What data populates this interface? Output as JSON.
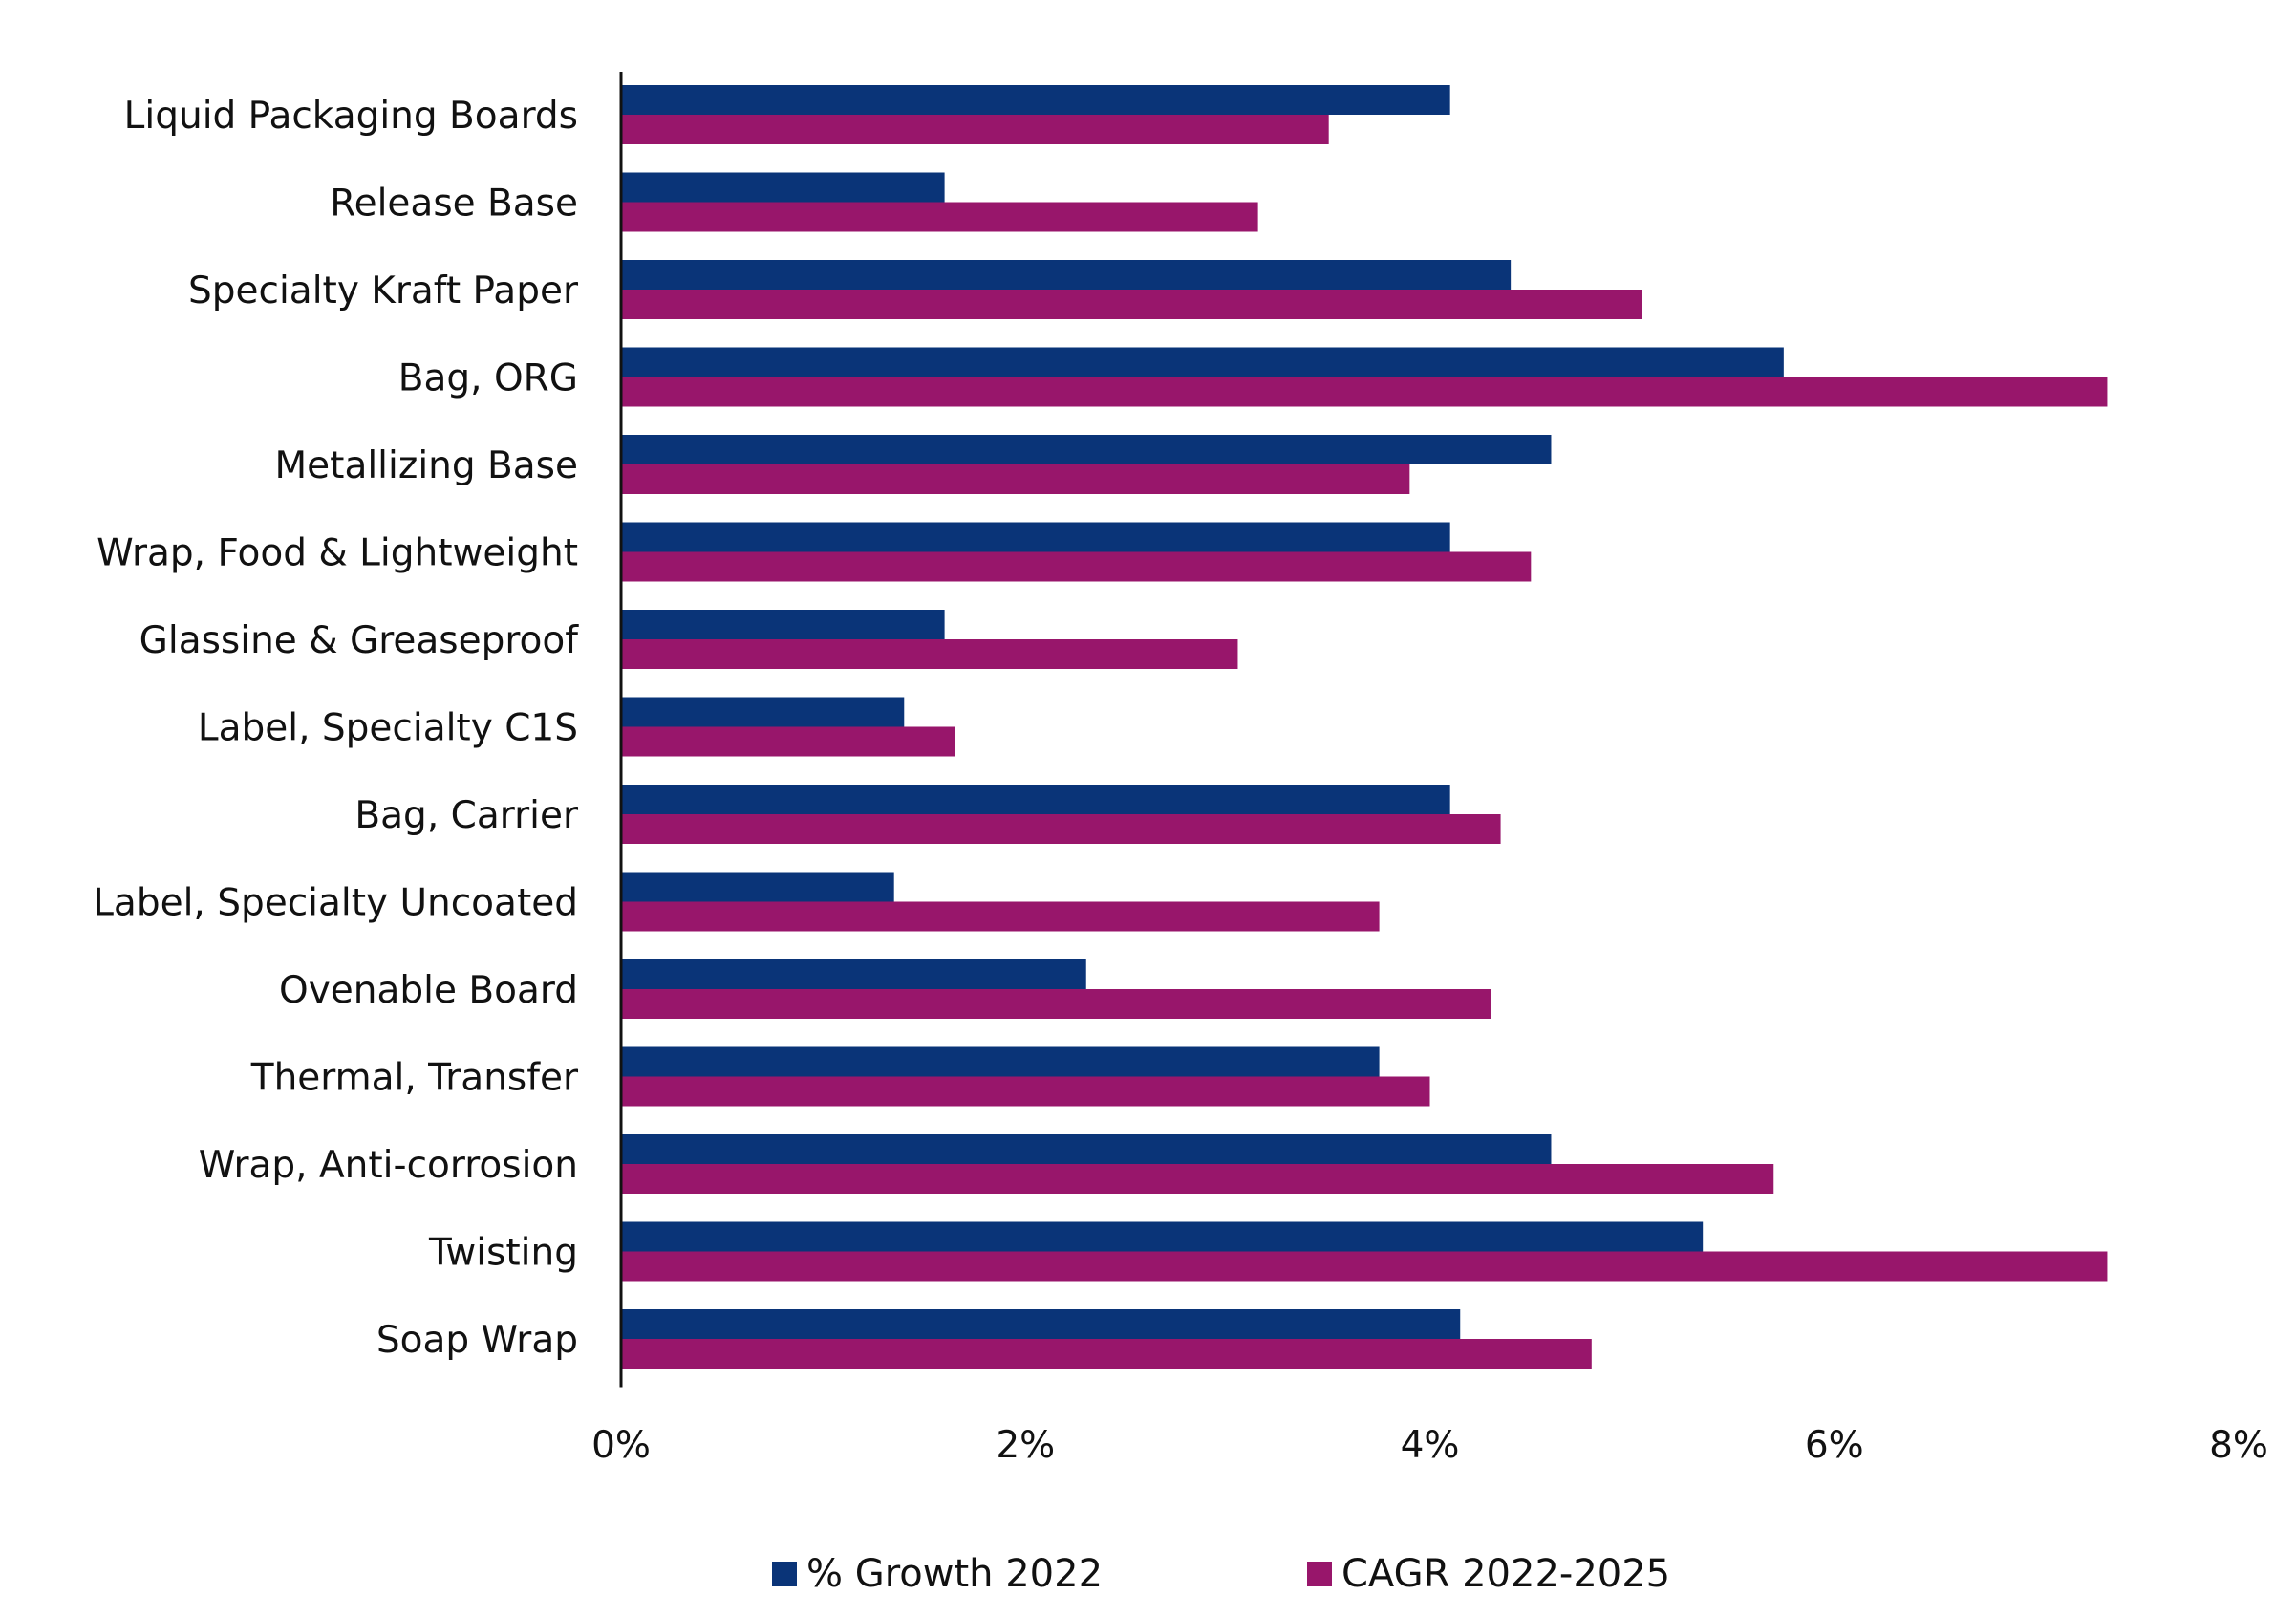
{
  "chart_data": {
    "type": "bar",
    "orientation": "horizontal",
    "title": "",
    "xlabel": "",
    "ylabel": "",
    "xlim": [
      0,
      8
    ],
    "x_ticks": [
      "0%",
      "2%",
      "4%",
      "6%",
      "8%"
    ],
    "x_tick_values": [
      0,
      2,
      4,
      6,
      8
    ],
    "grid": false,
    "legend_position": "bottom",
    "categories": [
      "Liquid Packaging Boards",
      "Release Base",
      "Specialty Kraft Paper",
      "Bag, ORG",
      "Metallizing Base",
      "Wrap, Food & Lightweight",
      "Glassine & Greaseproof",
      "Label, Specialty C1S",
      "Bag, Carrier",
      "Label, Specialty Uncoated",
      "Ovenable Board",
      "Thermal, Transfer",
      "Wrap, Anti-corrosion",
      "Twisting",
      "Soap Wrap"
    ],
    "series": [
      {
        "name": "% Growth 2022",
        "color": "#0a3478",
        "values": [
          4.1,
          1.6,
          4.4,
          5.75,
          4.6,
          4.1,
          1.6,
          1.4,
          4.1,
          1.35,
          2.3,
          3.75,
          4.6,
          5.35,
          4.15
        ]
      },
      {
        "name": "CAGR 2022-2025",
        "color": "#98166b",
        "values": [
          3.5,
          3.15,
          5.05,
          7.35,
          3.9,
          4.5,
          3.05,
          1.65,
          4.35,
          3.75,
          4.3,
          4.0,
          5.7,
          7.35,
          4.8
        ]
      }
    ],
    "unit": "%"
  }
}
